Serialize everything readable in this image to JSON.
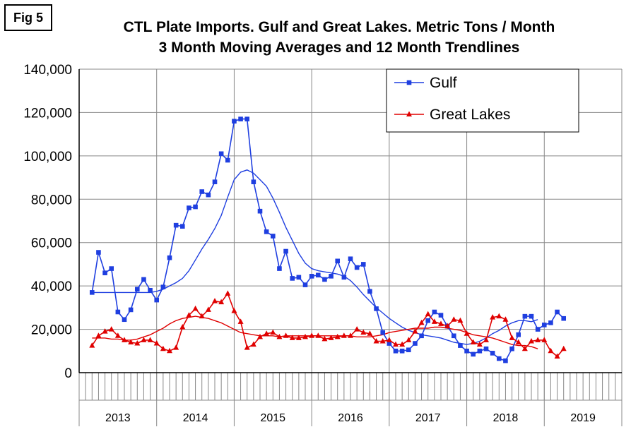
{
  "figure_label": "Fig 5",
  "chart_data": {
    "type": "line",
    "title": "CTL Plate Imports. Gulf and Great Lakes. Metric Tons / Month",
    "subtitle": "3 Month Moving Averages and 12 Month Trendlines",
    "xlabel": "",
    "ylabel": "",
    "ylim": [
      0,
      140000
    ],
    "yticks": [
      "0",
      "20,000",
      "40,000",
      "60,000",
      "80,000",
      "100,000",
      "120,000",
      "140,000"
    ],
    "year_labels": [
      "2013",
      "2014",
      "2015",
      "2016",
      "2017",
      "2018",
      "2019"
    ],
    "grid": true,
    "legend_placement": "top-right",
    "series": [
      {
        "name": "Gulf",
        "color": "#1f3fe0",
        "marker": "square",
        "values": [
          37000,
          55500,
          46000,
          48000,
          28000,
          24500,
          29000,
          38500,
          43000,
          38000,
          33500,
          39500,
          53000,
          68000,
          67500,
          76000,
          76500,
          83500,
          82000,
          88000,
          101000,
          98000,
          116000,
          117000,
          117000,
          88000,
          74500,
          65000,
          63000,
          48000,
          56000,
          43500,
          44000,
          40500,
          44500,
          45000,
          43000,
          44500,
          51500,
          44000,
          52500,
          48500,
          50000,
          37500,
          29500,
          18500,
          13500,
          10000,
          10000,
          10500,
          13500,
          17000,
          24000,
          28000,
          26500,
          21500,
          17000,
          12500,
          10000,
          8500,
          10000,
          11000,
          9000,
          6500,
          5500,
          11000,
          17500,
          26000,
          26000,
          20000,
          22000,
          23000,
          28000,
          25000
        ]
      },
      {
        "name": "Great Lakes",
        "color": "#e00000",
        "marker": "triangle",
        "values": [
          12500,
          17000,
          19000,
          20000,
          17000,
          15000,
          14000,
          13500,
          15000,
          15000,
          13500,
          11000,
          10000,
          11500,
          21000,
          26500,
          29500,
          26000,
          29000,
          33000,
          32500,
          36500,
          28500,
          23500,
          11500,
          13000,
          16500,
          18000,
          18500,
          16500,
          17000,
          16000,
          16000,
          16500,
          17000,
          17000,
          15500,
          16000,
          16500,
          17000,
          17000,
          20000,
          18500,
          18000,
          14500,
          14500,
          15000,
          13000,
          13000,
          15000,
          19000,
          23000,
          27000,
          23500,
          22500,
          21500,
          24500,
          24000,
          18000,
          14000,
          13000,
          15000,
          25500,
          26000,
          24500,
          16000,
          14000,
          11000,
          14500,
          15000,
          15000,
          10000,
          7500,
          11000
        ]
      }
    ],
    "trendlines": [
      {
        "series": "Gulf",
        "color": "#1f3fe0",
        "values": [
          37000,
          37000,
          37000,
          37000,
          37000,
          37000,
          37000,
          37000,
          37000,
          37000,
          37500,
          38500,
          40000,
          41500,
          43500,
          47000,
          52000,
          57000,
          61500,
          66500,
          72500,
          81000,
          89000,
          92500,
          93500,
          92000,
          89000,
          86000,
          80500,
          74000,
          67000,
          61000,
          55000,
          50500,
          48000,
          47000,
          46500,
          46000,
          45500,
          44500,
          42500,
          39500,
          36000,
          33000,
          30000,
          27500,
          25000,
          23000,
          21000,
          19500,
          18500,
          17500,
          17000,
          16500,
          16000,
          15000,
          14000,
          13500,
          13000,
          13500,
          14500,
          16000,
          18000,
          19500,
          21500,
          23000,
          24000,
          24000,
          23500,
          24500
        ]
      },
      {
        "series": "Great Lakes",
        "color": "#e00000",
        "values": [
          16000,
          16000,
          16000,
          15500,
          15500,
          15000,
          15000,
          15500,
          16500,
          17500,
          19000,
          20500,
          22500,
          24000,
          25000,
          25500,
          26000,
          25500,
          25000,
          24000,
          23000,
          21500,
          20000,
          18500,
          18000,
          17500,
          17000,
          17000,
          17000,
          16500,
          17000,
          17000,
          17000,
          17000,
          17000,
          17000,
          17000,
          17000,
          17000,
          17000,
          17000,
          16500,
          16500,
          16500,
          17000,
          17500,
          18500,
          19000,
          19500,
          20000,
          20500,
          20500,
          20500,
          21000,
          21000,
          20500,
          20000,
          19500,
          18500,
          17500,
          17000,
          16500,
          16000,
          15000,
          14000,
          13000,
          12500,
          12500,
          12000,
          11000
        ]
      }
    ]
  }
}
